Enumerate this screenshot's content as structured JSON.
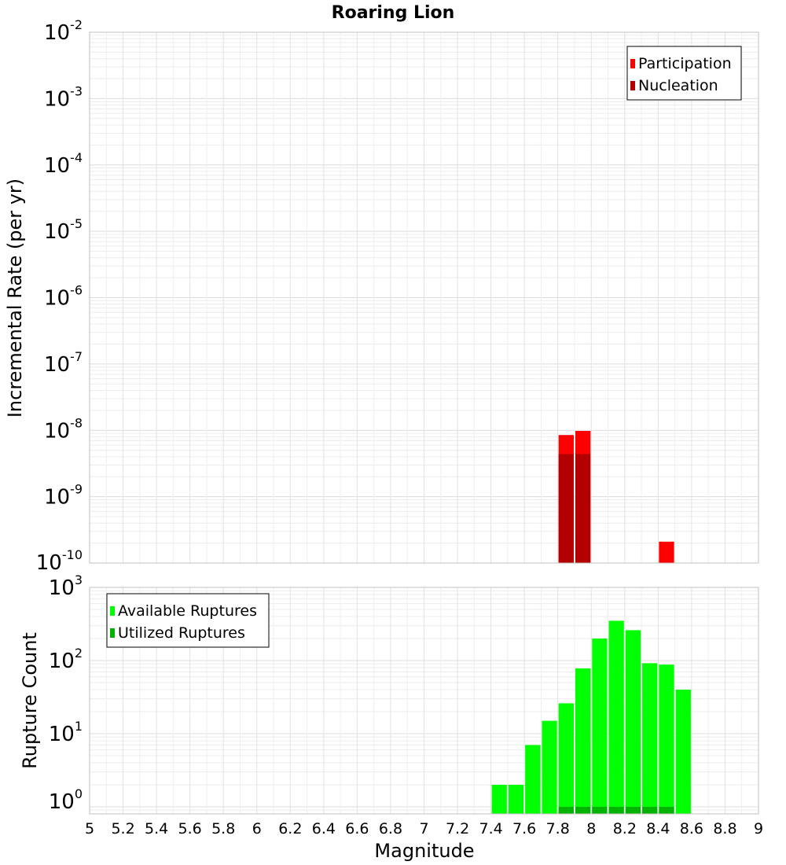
{
  "title": "Roaring Lion",
  "chart_data": [
    {
      "type": "bar",
      "ylabel": "Incremental Rate (per yr)",
      "yscale": "log",
      "ylim": [
        1e-10,
        0.01
      ],
      "xlim": [
        5,
        9
      ],
      "grid": true,
      "legend_position": "top-right",
      "y_ticks": [
        {
          "base": "10",
          "exp": "-2"
        },
        {
          "base": "10",
          "exp": "-3"
        },
        {
          "base": "10",
          "exp": "-4"
        },
        {
          "base": "10",
          "exp": "-5"
        },
        {
          "base": "10",
          "exp": "-6"
        },
        {
          "base": "10",
          "exp": "-7"
        },
        {
          "base": "10",
          "exp": "-8"
        },
        {
          "base": "10",
          "exp": "-9"
        },
        {
          "base": "10",
          "exp": "-10"
        }
      ],
      "series": [
        {
          "name": "Participation",
          "color": "#ff0000",
          "points": [
            {
              "x": 7.85,
              "y": 8.5e-09
            },
            {
              "x": 7.95,
              "y": 9.8e-09
            },
            {
              "x": 8.45,
              "y": 2.1e-10
            }
          ]
        },
        {
          "name": "Nucleation",
          "color": "#b30000",
          "points": [
            {
              "x": 7.85,
              "y": 4.4e-09
            },
            {
              "x": 7.95,
              "y": 4.4e-09
            }
          ]
        }
      ]
    },
    {
      "type": "bar",
      "xlabel": "Magnitude",
      "ylabel": "Rupture Count",
      "yscale": "log",
      "ylim": [
        0.8,
        1000
      ],
      "xlim": [
        5,
        9
      ],
      "grid": true,
      "legend_position": "top-left",
      "y_ticks": [
        {
          "base": "10",
          "exp": "3"
        },
        {
          "base": "10",
          "exp": "2"
        },
        {
          "base": "10",
          "exp": "1"
        },
        {
          "base": "10",
          "exp": "0"
        }
      ],
      "x_ticks": [
        "5",
        "5.2",
        "5.4",
        "5.6",
        "5.8",
        "6",
        "6.2",
        "6.4",
        "6.6",
        "6.8",
        "7",
        "7.2",
        "7.4",
        "7.6",
        "7.8",
        "8",
        "8.2",
        "8.4",
        "8.6",
        "8.8",
        "9"
      ],
      "series": [
        {
          "name": "Available Ruptures",
          "color": "#00ff00",
          "points": [
            {
              "x": 7.45,
              "y": 2
            },
            {
              "x": 7.55,
              "y": 2
            },
            {
              "x": 7.65,
              "y": 7
            },
            {
              "x": 7.75,
              "y": 15
            },
            {
              "x": 7.85,
              "y": 26
            },
            {
              "x": 7.95,
              "y": 78
            },
            {
              "x": 8.05,
              "y": 200
            },
            {
              "x": 8.15,
              "y": 350
            },
            {
              "x": 8.25,
              "y": 260
            },
            {
              "x": 8.35,
              "y": 92
            },
            {
              "x": 8.45,
              "y": 88
            },
            {
              "x": 8.55,
              "y": 40
            }
          ]
        },
        {
          "name": "Utilized Ruptures",
          "color": "#00b300",
          "points": [
            {
              "x": 7.85,
              "y": 1
            },
            {
              "x": 7.95,
              "y": 1
            },
            {
              "x": 8.05,
              "y": 1
            },
            {
              "x": 8.15,
              "y": 1
            },
            {
              "x": 8.25,
              "y": 1
            },
            {
              "x": 8.35,
              "y": 1
            },
            {
              "x": 8.45,
              "y": 1
            }
          ]
        }
      ]
    }
  ]
}
